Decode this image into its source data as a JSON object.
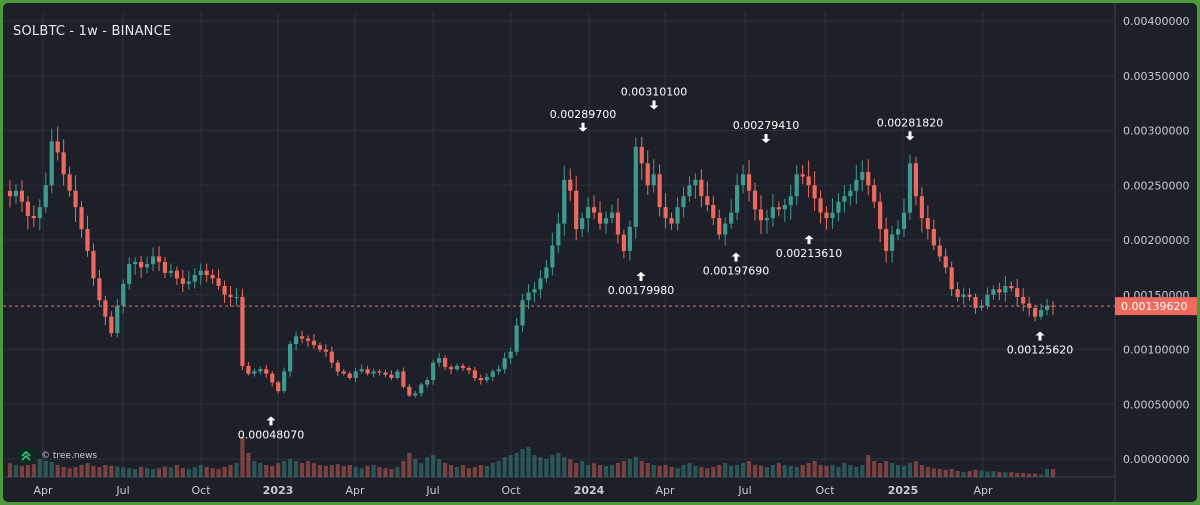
{
  "chart_title": "SOLBTC - 1w - BINANCE",
  "watermark": {
    "icon": "double-chevron-up-icon",
    "text": "© tree.news"
  },
  "colors": {
    "background": "#1d2029",
    "grid": "#2b2f3a",
    "up": "#3f9a8d",
    "down": "#ef6a5e",
    "text": "#e8e8ea",
    "axis_text": "#c7cad1",
    "current_price_bg": "#ef6a5e"
  },
  "chart_data": {
    "type": "candlestick",
    "title": "SOLBTC - 1w - BINANCE",
    "y_axis_position": "right",
    "y_ticks": [
      "0.00000000",
      "0.00050000",
      "0.00100000",
      "0.00150000",
      "0.00200000",
      "0.00250000",
      "0.00300000",
      "0.00350000",
      "0.00400000"
    ],
    "ylim": [
      0,
      0.004
    ],
    "x_ticks": [
      "Apr",
      "Jul",
      "Oct",
      "2023",
      "Apr",
      "Jul",
      "Oct",
      "2024",
      "Apr",
      "Jul",
      "Oct",
      "2025",
      "Apr"
    ],
    "x_ticks_bold": [
      "2023",
      "2024",
      "2025"
    ],
    "current_price": "0.00139620",
    "annotations": [
      {
        "label": "0.00048070",
        "type": "low",
        "value": 0.0004807
      },
      {
        "label": "0.00289700",
        "type": "high",
        "value": 0.002897
      },
      {
        "label": "0.00179980",
        "type": "low",
        "value": 0.0017998
      },
      {
        "label": "0.00310100",
        "type": "high",
        "value": 0.003101
      },
      {
        "label": "0.00197690",
        "type": "low",
        "value": 0.0019769
      },
      {
        "label": "0.00279410",
        "type": "high",
        "value": 0.0027941
      },
      {
        "label": "0.00213610",
        "type": "low",
        "value": 0.0021361
      },
      {
        "label": "0.00281820",
        "type": "high",
        "value": 0.0028182
      },
      {
        "label": "0.00125620",
        "type": "low",
        "value": 0.0012562
      }
    ],
    "price_path": [
      0.0024,
      0.00245,
      0.00235,
      0.00222,
      0.0022,
      0.0023,
      0.0025,
      0.0029,
      0.0028,
      0.0026,
      0.00245,
      0.0023,
      0.0021,
      0.0019,
      0.00165,
      0.00145,
      0.0013,
      0.00115,
      0.0014,
      0.0016,
      0.00178,
      0.0018,
      0.00175,
      0.00178,
      0.00185,
      0.0018,
      0.0017,
      0.00172,
      0.00165,
      0.0016,
      0.00162,
      0.00168,
      0.00172,
      0.00168,
      0.00165,
      0.00158,
      0.0015,
      0.00148,
      0.00148,
      0.00085,
      0.00078,
      0.0008,
      0.00082,
      0.00078,
      0.0007,
      0.00062,
      0.0008,
      0.00105,
      0.00112,
      0.0011,
      0.00108,
      0.00104,
      0.001,
      0.00098,
      0.00088,
      0.0008,
      0.00078,
      0.00074,
      0.0008,
      0.00082,
      0.00078,
      0.0008,
      0.00079,
      0.00077,
      0.00074,
      0.0008,
      0.00066,
      0.00058,
      0.0006,
      0.00068,
      0.00072,
      0.00088,
      0.00092,
      0.00084,
      0.00082,
      0.00085,
      0.00083,
      0.00081,
      0.00074,
      0.00072,
      0.00075,
      0.0008,
      0.00082,
      0.00092,
      0.00098,
      0.00122,
      0.00145,
      0.00152,
      0.00155,
      0.00165,
      0.00175,
      0.00195,
      0.00215,
      0.00255,
      0.00245,
      0.0021,
      0.0022,
      0.0023,
      0.00225,
      0.00215,
      0.0022,
      0.00225,
      0.00205,
      0.0019,
      0.00212,
      0.00285,
      0.0027,
      0.0025,
      0.0026,
      0.0023,
      0.0022,
      0.00215,
      0.0023,
      0.0024,
      0.0025,
      0.00255,
      0.0024,
      0.00232,
      0.0022,
      0.00205,
      0.00215,
      0.00225,
      0.0025,
      0.0026,
      0.00245,
      0.00228,
      0.00218,
      0.0022,
      0.0023,
      0.00228,
      0.00232,
      0.0024,
      0.0026,
      0.00258,
      0.0025,
      0.00238,
      0.00225,
      0.0022,
      0.00225,
      0.00235,
      0.0024,
      0.00245,
      0.00255,
      0.00262,
      0.0025,
      0.00235,
      0.0021,
      0.0019,
      0.00205,
      0.0021,
      0.00225,
      0.0027,
      0.0024,
      0.0022,
      0.0021,
      0.00195,
      0.00185,
      0.00175,
      0.00155,
      0.00148,
      0.0015,
      0.00148,
      0.00138,
      0.0014,
      0.0015,
      0.00155,
      0.00152,
      0.00158,
      0.00156,
      0.00148,
      0.00142,
      0.00138,
      0.0013,
      0.00136,
      0.0014,
      0.0013962
    ],
    "volume_scale_note": "relative",
    "volume_profile": [
      0.35,
      0.3,
      0.28,
      0.3,
      0.32,
      0.45,
      0.4,
      0.38,
      0.3,
      0.25,
      0.22,
      0.25,
      0.3,
      0.35,
      0.28,
      0.25,
      0.3,
      0.28,
      0.26,
      0.24,
      0.22,
      0.2,
      0.25,
      0.22,
      0.2,
      0.22,
      0.26,
      0.24,
      0.3,
      0.22,
      0.2,
      0.25,
      0.3,
      0.25,
      0.22,
      0.2,
      0.25,
      0.3,
      0.35,
      1.0,
      0.6,
      0.4,
      0.35,
      0.3,
      0.28,
      0.35,
      0.4,
      0.45,
      0.4,
      0.35,
      0.4,
      0.35,
      0.3,
      0.28,
      0.3,
      0.32,
      0.28,
      0.3,
      0.25,
      0.22,
      0.28,
      0.3,
      0.25,
      0.22,
      0.2,
      0.25,
      0.4,
      0.6,
      0.45,
      0.35,
      0.5,
      0.55,
      0.45,
      0.35,
      0.3,
      0.25,
      0.3,
      0.22,
      0.25,
      0.3,
      0.28,
      0.35,
      0.4,
      0.5,
      0.55,
      0.6,
      0.7,
      0.75,
      0.55,
      0.5,
      0.45,
      0.55,
      0.6,
      0.5,
      0.45,
      0.35,
      0.4,
      0.3,
      0.35,
      0.3,
      0.28,
      0.3,
      0.35,
      0.4,
      0.45,
      0.5,
      0.4,
      0.35,
      0.3,
      0.28,
      0.3,
      0.25,
      0.22,
      0.3,
      0.35,
      0.28,
      0.25,
      0.22,
      0.25,
      0.3,
      0.35,
      0.28,
      0.3,
      0.35,
      0.4,
      0.3,
      0.28,
      0.25,
      0.3,
      0.35,
      0.3,
      0.28,
      0.25,
      0.3,
      0.35,
      0.4,
      0.3,
      0.28,
      0.3,
      0.25,
      0.35,
      0.3,
      0.25,
      0.3,
      0.55,
      0.4,
      0.35,
      0.4,
      0.35,
      0.3,
      0.28,
      0.35,
      0.4,
      0.3,
      0.25,
      0.22,
      0.2,
      0.18,
      0.2,
      0.15,
      0.12,
      0.15,
      0.18,
      0.16,
      0.14,
      0.15,
      0.13,
      0.12,
      0.12,
      0.1,
      0.1,
      0.08,
      0.08,
      0.06
    ]
  }
}
